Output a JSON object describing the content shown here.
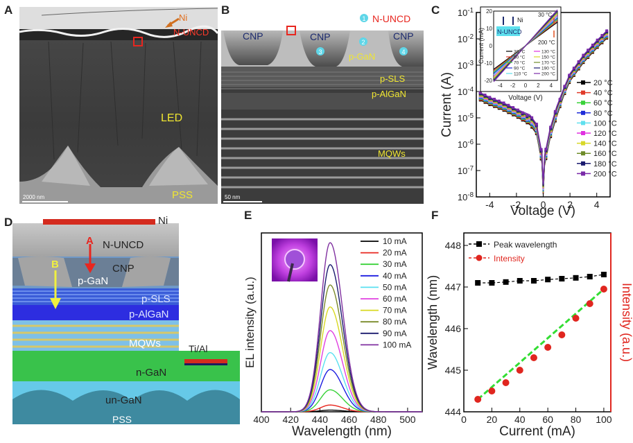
{
  "panels": {
    "A": {
      "letter": "A",
      "ni": "Ni",
      "nuncd": "N-UNCD",
      "led": "LED",
      "pss": "PSS",
      "scale": "2000 nm"
    },
    "B": {
      "letter": "B",
      "nuncd": "N-UNCD",
      "cnp": [
        "CNP",
        "CNP",
        "CNP"
      ],
      "pgan": "p-GaN",
      "psls": "p-SLS",
      "palgan": "p-AlGaN",
      "mqws": "MQWs",
      "scale": "50 nm",
      "markers": [
        "1",
        "2",
        "3",
        "4"
      ]
    },
    "D": {
      "letter": "D",
      "ni": "Ni",
      "nuncd": "N-UNCD",
      "arrow_a": "A",
      "arrow_b": "B",
      "cnp": "CNP",
      "pgan": "p-GaN",
      "psls": "p-SLS",
      "palgan": "p-AlGaN",
      "mqws": "MQWs",
      "tial": "Ti/Al",
      "ngan": "n-GaN",
      "ungan": "un-GaN",
      "pss": "PSS"
    },
    "C": {
      "letter": "C"
    },
    "E": {
      "letter": "E"
    },
    "F": {
      "letter": "F"
    }
  },
  "colors": {
    "C_series": [
      "#000000",
      "#e03a2a",
      "#39d239",
      "#1e2bd8",
      "#5fe0ee",
      "#e030e0",
      "#d8d828",
      "#6f8c2a",
      "#1a1a6e",
      "#7a2aa8"
    ],
    "E_series": [
      "#000000",
      "#e8261f",
      "#38d238",
      "#1c1ce0",
      "#58e0f0",
      "#e040e0",
      "#d8d820",
      "#7a8a2a",
      "#1a1a6e",
      "#8030a0"
    ],
    "F_peak": "#000000",
    "F_intensity": "#e0261f",
    "F_fit": "#33dd33"
  },
  "chart_data": [
    {
      "id": "C",
      "type": "line",
      "xlabel": "Voltage (V)",
      "ylabel": "Current (A)",
      "xlim": [
        -5,
        5
      ],
      "ylim_log10": [
        -8,
        -1
      ],
      "xticks": [
        "-4",
        "-2",
        "0",
        "2",
        "4"
      ],
      "yticks": [
        "10-8",
        "10-7",
        "10-6",
        "10-5",
        "10-4",
        "10-3",
        "10-2",
        "10-1"
      ],
      "series": [
        {
          "name": "20 °C",
          "shift": 0.0
        },
        {
          "name": "40 °C",
          "shift": 0.03
        },
        {
          "name": "60 °C",
          "shift": 0.06
        },
        {
          "name": "80 °C",
          "shift": 0.09
        },
        {
          "name": "100 °C",
          "shift": 0.12
        },
        {
          "name": "120 °C",
          "shift": 0.15
        },
        {
          "name": "140 °C",
          "shift": 0.18
        },
        {
          "name": "160 °C",
          "shift": 0.21
        },
        {
          "name": "180 °C",
          "shift": 0.24
        },
        {
          "name": "200 °C",
          "shift": 0.28
        }
      ],
      "curve": {
        "x": [
          -4.8,
          -4,
          -3,
          -2,
          -1,
          -0.5,
          -0.1,
          0,
          0.1,
          0.5,
          1,
          1.5,
          2,
          3,
          4,
          4.8
        ],
        "log10_y": [
          -4.3,
          -4.5,
          -4.7,
          -4.95,
          -5.25,
          -5.6,
          -6.7,
          -7.9,
          -6.8,
          -5.8,
          -4.95,
          -4.2,
          -3.6,
          -2.9,
          -2.35,
          -1.95
        ]
      },
      "inset": {
        "xlabel": "Voltage (V)",
        "ylabel": "Current (mA)",
        "xlim": [
          -5,
          5
        ],
        "ylim": [
          -20,
          20
        ],
        "xticks": [
          "-4",
          "-2",
          "0",
          "2",
          "4"
        ],
        "yticks": [
          "-20",
          "-10",
          "0",
          "10",
          "20"
        ],
        "top_label": "30 °C",
        "bottom_label": "200 °C",
        "ni": "Ni",
        "nuncd": "N-UNCD",
        "legend": [
          "30 °C",
          "50 °C",
          "70 °C",
          "90 °C",
          "110 °C",
          "130 °C",
          "150 °C",
          "170 °C",
          "190 °C",
          "200 °C"
        ],
        "slopes": [
          3.4,
          3.6,
          3.8,
          4.0,
          4.2,
          4.4,
          4.6,
          4.8,
          5.0,
          5.2
        ]
      }
    },
    {
      "id": "E",
      "type": "line",
      "xlabel": "Wavelength (nm)",
      "ylabel": "EL intensity (a.u.)",
      "xlim": [
        400,
        510
      ],
      "xticks": [
        "400",
        "420",
        "440",
        "460",
        "480",
        "500"
      ],
      "peak_nm": 447,
      "series": [
        {
          "name": "10 mA",
          "peak": 0.01
        },
        {
          "name": "20 mA",
          "peak": 0.04
        },
        {
          "name": "30 mA",
          "peak": 0.13
        },
        {
          "name": "40 mA",
          "peak": 0.25
        },
        {
          "name": "50 mA",
          "peak": 0.35
        },
        {
          "name": "60 mA",
          "peak": 0.48
        },
        {
          "name": "70 mA",
          "peak": 0.62
        },
        {
          "name": "80 mA",
          "peak": 0.75
        },
        {
          "name": "90 mA",
          "peak": 0.87
        },
        {
          "name": "100 mA",
          "peak": 1.0
        }
      ]
    },
    {
      "id": "F",
      "type": "scatter",
      "xlabel": "Current (mA)",
      "ylabel": "Wavelength (nm)",
      "ylabel_right": "Intensity (a.u.)",
      "xlim": [
        0,
        105
      ],
      "ylim": [
        444,
        448.3
      ],
      "xticks": [
        "0",
        "20",
        "40",
        "60",
        "80",
        "100"
      ],
      "yticks": [
        "444",
        "445",
        "446",
        "447",
        "448"
      ],
      "x": [
        10,
        20,
        30,
        40,
        50,
        60,
        70,
        80,
        90,
        100
      ],
      "series": [
        {
          "name": "Peak wavelength",
          "values": [
            447.1,
            447.1,
            447.12,
            447.15,
            447.15,
            447.18,
            447.2,
            447.22,
            447.25,
            447.3
          ]
        },
        {
          "name": "Intensity",
          "values": [
            444.3,
            444.5,
            444.7,
            445.0,
            445.3,
            445.55,
            445.85,
            446.25,
            446.6,
            446.95
          ]
        }
      ]
    }
  ]
}
